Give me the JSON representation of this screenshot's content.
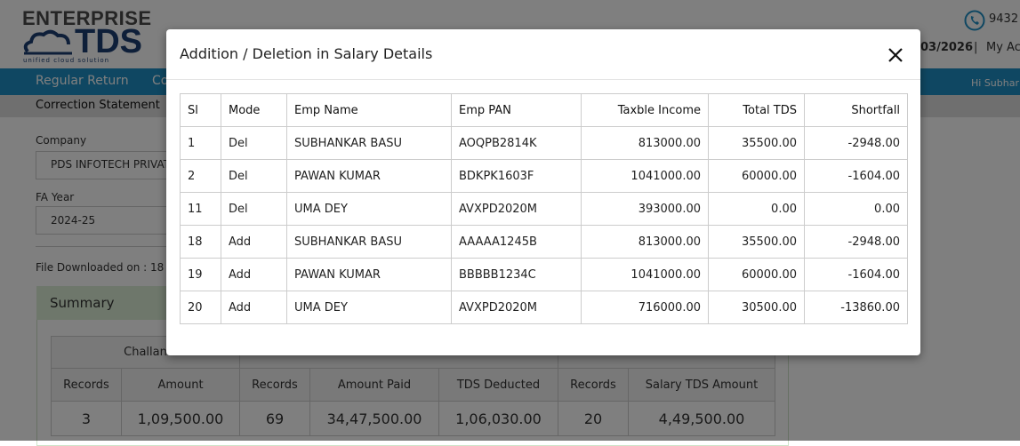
{
  "header": {
    "logo_top": "ENTERPRISE",
    "logo_main": "TDS",
    "logo_tagline": "unified cloud solution",
    "phone": "9432",
    "date": "03/2026",
    "separator": "|",
    "account": "My Ac"
  },
  "nav": {
    "items": [
      "Regular Return",
      "Co"
    ],
    "greeting": "Hi Subhar"
  },
  "breadcrumb": "Correction Statement",
  "form": {
    "company_label": "Company",
    "company_value": "PDS INFOTECH PRIVAT",
    "year_label": "FA Year",
    "year_value": "2024-25",
    "downloaded": "File Downloaded on : 18"
  },
  "summary": {
    "title": "Summary",
    "groups": [
      "Challan"
    ],
    "columns": [
      "Records",
      "Amount",
      "Records",
      "Amount Paid",
      "TDS Deducted",
      "Records",
      "Salary TDS Amount"
    ],
    "values": [
      "3",
      "1,09,500.00",
      "69",
      "34,47,500.00",
      "1,06,030.00",
      "20",
      "4,49,500.00"
    ]
  },
  "modal": {
    "title": "Addition / Deletion in Salary Details",
    "table": {
      "columns": [
        "Sl",
        "Mode",
        "Emp Name",
        "Emp PAN",
        "Taxble Income",
        "Total TDS",
        "Shortfall"
      ],
      "rows": [
        [
          "1",
          "Del",
          "SUBHANKAR BASU",
          "AOQPB2814K",
          "813000.00",
          "35500.00",
          "-2948.00"
        ],
        [
          "2",
          "Del",
          "PAWAN KUMAR",
          "BDKPK1603F",
          "1041000.00",
          "60000.00",
          "-1604.00"
        ],
        [
          "11",
          "Del",
          "UMA DEY",
          "AVXPD2020M",
          "393000.00",
          "0.00",
          "0.00"
        ],
        [
          "18",
          "Add",
          "SUBHANKAR BASU",
          "AAAAA1245B",
          "813000.00",
          "35500.00",
          "-2948.00"
        ],
        [
          "19",
          "Add",
          "PAWAN KUMAR",
          "BBBBB1234C",
          "1041000.00",
          "60000.00",
          "-1604.00"
        ],
        [
          "20",
          "Add",
          "UMA DEY",
          "AVXPD2020M",
          "716000.00",
          "30500.00",
          "-13860.00"
        ]
      ]
    }
  }
}
